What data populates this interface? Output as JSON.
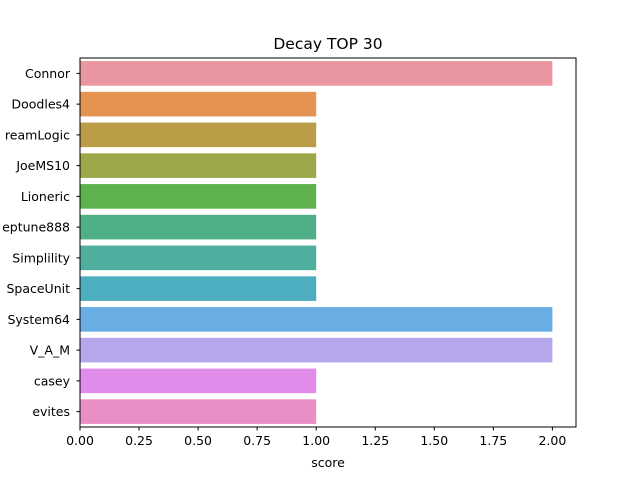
{
  "chart_data": {
    "type": "bar",
    "orientation": "horizontal",
    "title": "Decay TOP 30",
    "xlabel": "score",
    "ylabel": "",
    "xlim": [
      0,
      2.1
    ],
    "xticks": [
      "0.00",
      "0.25",
      "0.50",
      "0.75",
      "1.00",
      "1.25",
      "1.50",
      "1.75",
      "2.00"
    ],
    "categories": [
      "Connor",
      "Doodles4",
      "reamLogic",
      "JoeMS10",
      "Lioneric",
      "eptune888",
      "Simplility",
      "SpaceUnit",
      "System64",
      "V_A_M",
      "casey",
      "evites"
    ],
    "values": [
      2,
      1,
      1,
      1,
      1,
      1,
      1,
      1,
      2,
      2,
      1,
      1
    ],
    "colors": [
      "#ea96a0",
      "#e59350",
      "#bb9d48",
      "#9ea74a",
      "#5db24c",
      "#4fb087",
      "#4fae9d",
      "#4daebf",
      "#68ade3",
      "#b6a6ec",
      "#e18ceb",
      "#ea8fc6"
    ],
    "grid": false,
    "legend": "none"
  }
}
